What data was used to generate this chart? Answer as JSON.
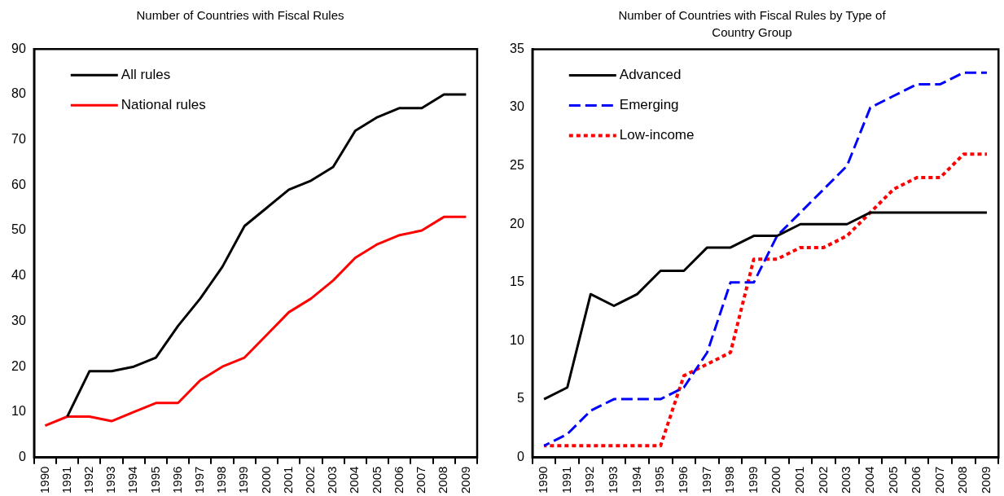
{
  "chart_data": [
    {
      "type": "line",
      "title": "Number of Countries with Fiscal Rules",
      "categories": [
        "1990",
        "1991",
        "1992",
        "1993",
        "1994",
        "1995",
        "1996",
        "1997",
        "1998",
        "1999",
        "2000",
        "2001",
        "2002",
        "2003",
        "2004",
        "2005",
        "2006",
        "2007",
        "2008",
        "2009"
      ],
      "ylim": [
        0,
        90
      ],
      "yticks": [
        0,
        10,
        20,
        30,
        40,
        50,
        60,
        70,
        80,
        90
      ],
      "grid": false,
      "legend": "top left",
      "marker": "none",
      "series": [
        {
          "name": "All rules",
          "color": "#000000",
          "line_style": "solid",
          "values": [
            null,
            9,
            19,
            19,
            20,
            22,
            29,
            35,
            42,
            51,
            55,
            59,
            61,
            64,
            72,
            75,
            77,
            77,
            80,
            80
          ]
        },
        {
          "name": "National rules",
          "color": "#ff0000",
          "line_style": "solid",
          "values": [
            7,
            9,
            9,
            8,
            10,
            12,
            12,
            17,
            20,
            22,
            27,
            32,
            35,
            39,
            44,
            47,
            49,
            50,
            53,
            53
          ]
        }
      ]
    },
    {
      "type": "line",
      "title": "Number of Countries with Fiscal Rules by Type of Country Group",
      "categories": [
        "1990",
        "1991",
        "1992",
        "1993",
        "1994",
        "1995",
        "1996",
        "1997",
        "1998",
        "1999",
        "2000",
        "2001",
        "2002",
        "2003",
        "2004",
        "2005",
        "2006",
        "2007",
        "2008",
        "2009"
      ],
      "ylim": [
        0,
        35
      ],
      "yticks": [
        0,
        5,
        10,
        15,
        20,
        25,
        30,
        35
      ],
      "grid": false,
      "legend": "top left",
      "marker": "none",
      "series": [
        {
          "name": "Advanced",
          "color": "#000000",
          "line_style": "solid",
          "values": [
            5,
            6,
            14,
            13,
            14,
            16,
            16,
            18,
            18,
            19,
            19,
            20,
            20,
            20,
            21,
            21,
            21,
            21,
            21,
            21
          ]
        },
        {
          "name": "Emerging",
          "color": "#0000ff",
          "line_style": "dashed",
          "values": [
            1,
            2,
            4,
            5,
            5,
            5,
            6,
            9,
            15,
            15,
            19,
            21,
            23,
            25,
            30,
            31,
            32,
            32,
            33,
            33
          ]
        },
        {
          "name": "Low-income",
          "color": "#ff0000",
          "line_style": "dotted",
          "values": [
            1,
            1,
            1,
            1,
            1,
            1,
            7,
            8,
            9,
            17,
            17,
            18,
            18,
            19,
            21,
            23,
            24,
            24,
            26,
            26
          ]
        }
      ]
    }
  ]
}
